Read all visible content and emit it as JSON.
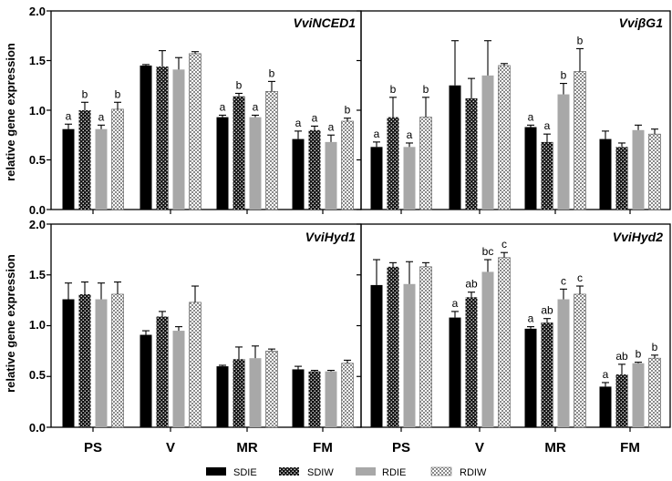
{
  "chart_data": {
    "type": "bar",
    "y_axis_label": "relative gene expression",
    "categories": [
      "PS",
      "V",
      "MR",
      "FM"
    ],
    "series_names": [
      "SDIE",
      "SDIW",
      "RDIE",
      "RDIW"
    ],
    "series_colors": [
      "#000000",
      "#111111",
      "#a8a8a8",
      "#d4d4d4"
    ],
    "ylim": [
      0,
      2.0
    ],
    "y_ticks": [
      "0.0",
      "0.5",
      "1.0",
      "1.5",
      "2.0"
    ],
    "panels": [
      {
        "title": "VviNCED1",
        "values": [
          [
            0.81,
            1.0,
            0.81,
            1.01
          ],
          [
            1.45,
            1.44,
            1.41,
            1.57
          ],
          [
            0.93,
            1.14,
            0.93,
            1.19
          ],
          [
            0.71,
            0.8,
            0.68,
            0.89
          ]
        ],
        "errors": [
          [
            0.05,
            0.08,
            0.04,
            0.07
          ],
          [
            0.01,
            0.16,
            0.12,
            0.02
          ],
          [
            0.02,
            0.03,
            0.02,
            0.1
          ],
          [
            0.08,
            0.04,
            0.07,
            0.03
          ]
        ],
        "labels": [
          [
            "a",
            "b",
            "a",
            "b"
          ],
          [
            "",
            "",
            "",
            ""
          ],
          [
            "a",
            "b",
            "a",
            "b"
          ],
          [
            "a",
            "a",
            "a",
            "b"
          ]
        ],
        "y_ticks_shown": true
      },
      {
        "title": "VviβG1",
        "values": [
          [
            0.63,
            0.93,
            0.63,
            0.93
          ],
          [
            1.25,
            1.12,
            1.35,
            1.45
          ],
          [
            0.83,
            0.68,
            1.16,
            1.39
          ],
          [
            0.71,
            0.63,
            0.8,
            0.76
          ]
        ],
        "errors": [
          [
            0.05,
            0.2,
            0.04,
            0.2
          ],
          [
            0.45,
            0.2,
            0.35,
            0.02
          ],
          [
            0.02,
            0.08,
            0.11,
            0.23
          ],
          [
            0.08,
            0.04,
            0.05,
            0.05
          ]
        ],
        "labels": [
          [
            "a",
            "b",
            "a",
            "b"
          ],
          [
            "",
            "",
            "",
            ""
          ],
          [
            "a",
            "a",
            "b",
            "b"
          ],
          [
            "",
            "",
            "",
            ""
          ]
        ],
        "y_ticks_shown": false
      },
      {
        "title": "VviHyd1",
        "values": [
          [
            1.26,
            1.31,
            1.26,
            1.31
          ],
          [
            0.91,
            1.09,
            0.95,
            1.23
          ],
          [
            0.6,
            0.67,
            0.68,
            0.75
          ],
          [
            0.57,
            0.55,
            0.55,
            0.63
          ]
        ],
        "errors": [
          [
            0.16,
            0.12,
            0.16,
            0.12
          ],
          [
            0.04,
            0.05,
            0.04,
            0.16
          ],
          [
            0.01,
            0.12,
            0.12,
            0.02
          ],
          [
            0.03,
            0.01,
            0.01,
            0.03
          ]
        ],
        "labels": [
          [
            "",
            "",
            "",
            ""
          ],
          [
            "",
            "",
            "",
            ""
          ],
          [
            "",
            "",
            "",
            ""
          ],
          [
            "",
            "",
            "",
            ""
          ]
        ],
        "y_ticks_shown": true
      },
      {
        "title": "VviHyd2",
        "values": [
          [
            1.4,
            1.58,
            1.41,
            1.58
          ],
          [
            1.08,
            1.28,
            1.53,
            1.67
          ],
          [
            0.97,
            1.03,
            1.26,
            1.31
          ],
          [
            0.4,
            0.52,
            0.63,
            0.68
          ]
        ],
        "errors": [
          [
            0.25,
            0.04,
            0.22,
            0.04
          ],
          [
            0.06,
            0.05,
            0.12,
            0.05
          ],
          [
            0.02,
            0.04,
            0.1,
            0.08
          ],
          [
            0.04,
            0.1,
            0.01,
            0.03
          ]
        ],
        "labels": [
          [
            "",
            "",
            "",
            ""
          ],
          [
            "a",
            "ab",
            "bc",
            "c"
          ],
          [
            "a",
            "ab",
            "c",
            "c"
          ],
          [
            "a",
            "ab",
            "b",
            "b"
          ]
        ],
        "y_ticks_shown": false
      }
    ]
  }
}
